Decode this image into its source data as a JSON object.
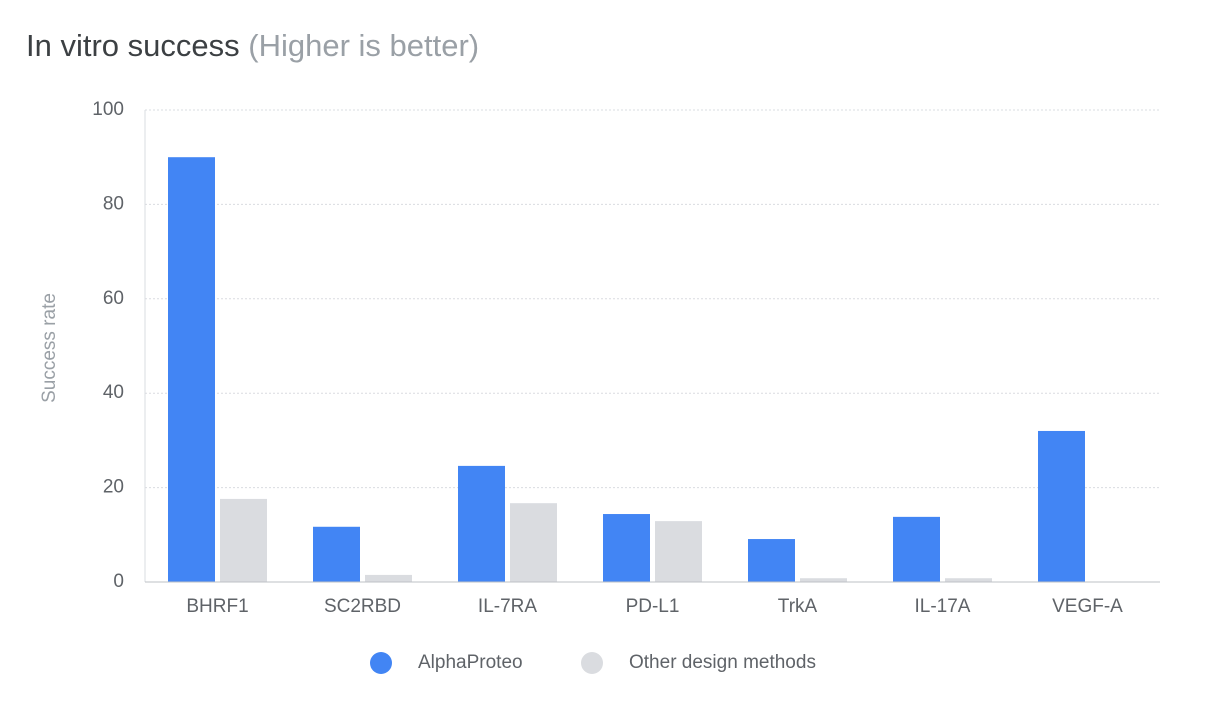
{
  "chart_data": {
    "type": "bar",
    "title": "In vitro success",
    "subtitle": "(Higher is better)",
    "y_label": "Success rate",
    "categories": [
      "BHRF1",
      "SC2RBD",
      "IL-7RA",
      "PD-L1",
      "TrkA",
      "IL-17A",
      "VEGF-A"
    ],
    "series": [
      {
        "name": "AlphaProteo",
        "color": "#4285f4",
        "values": [
          90,
          11.7,
          24.6,
          14.4,
          9.1,
          13.8,
          32
        ]
      },
      {
        "name": "Other design methods",
        "color": "#dadce0",
        "values": [
          17.6,
          1.5,
          16.7,
          12.9,
          0.8,
          0.8,
          0
        ]
      }
    ],
    "ylim": [
      0,
      100
    ],
    "yticks": [
      0,
      20,
      40,
      60,
      80,
      100
    ],
    "grid": true,
    "legend": "bottom"
  }
}
